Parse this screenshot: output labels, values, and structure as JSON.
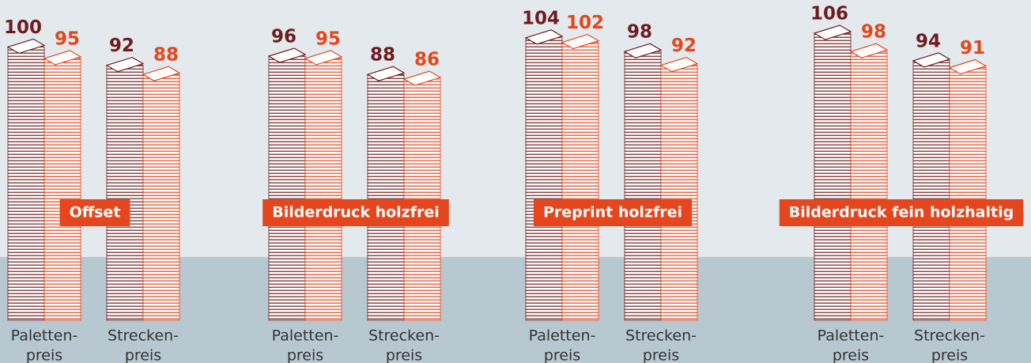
{
  "chart_data": {
    "type": "paper-stack",
    "colors": [
      "#6e1c1f",
      "#e5461d"
    ],
    "label_color": "#e5461d",
    "groups": [
      {
        "title": "Offset",
        "subgroups": [
          {
            "label": [
              "Paletten-",
              "preis"
            ],
            "values": [
              100,
              95
            ]
          },
          {
            "label": [
              "Strecken-",
              "preis"
            ],
            "values": [
              92,
              88
            ]
          }
        ]
      },
      {
        "title": "Bilderdruck holzfrei",
        "subgroups": [
          {
            "label": [
              "Paletten-",
              "preis"
            ],
            "values": [
              96,
              95
            ]
          },
          {
            "label": [
              "Strecken-",
              "preis"
            ],
            "values": [
              88,
              86
            ]
          }
        ]
      },
      {
        "title": "Preprint holzfrei",
        "subgroups": [
          {
            "label": [
              "Paletten-",
              "preis"
            ],
            "values": [
              104,
              102
            ]
          },
          {
            "label": [
              "Strecken-",
              "preis"
            ],
            "values": [
              98,
              92
            ]
          }
        ]
      },
      {
        "title": "Bilderdruck fein holzhaltig",
        "subgroups": [
          {
            "label": [
              "Paletten-",
              "preis"
            ],
            "values": [
              106,
              98
            ]
          },
          {
            "label": [
              "Strecken-",
              "preis"
            ],
            "values": [
              94,
              91
            ]
          }
        ]
      }
    ]
  }
}
